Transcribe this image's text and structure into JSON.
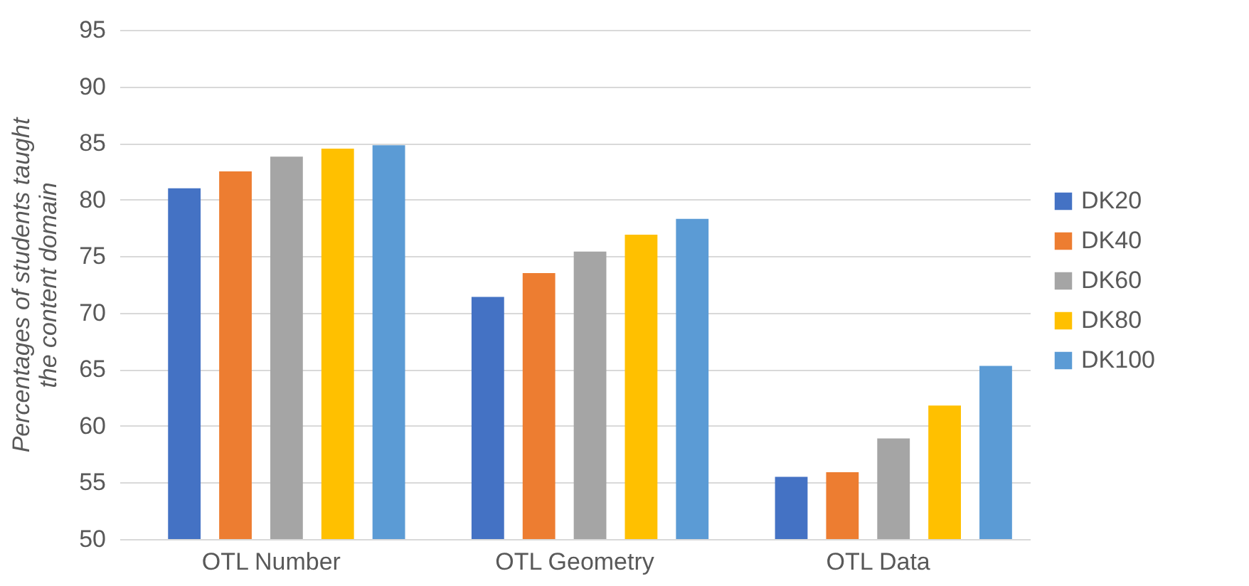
{
  "chart_data": {
    "type": "bar",
    "ylabel": "Percentages of students taught the content domain",
    "categories": [
      "OTL Number",
      "OTL Geometry",
      "OTL Data"
    ],
    "series": [
      {
        "name": "DK20",
        "color": "#4472c4",
        "values": [
          81.0,
          71.4,
          55.5
        ]
      },
      {
        "name": "DK40",
        "color": "#ed7d31",
        "values": [
          82.5,
          73.5,
          55.9
        ]
      },
      {
        "name": "DK60",
        "color": "#a5a5a5",
        "values": [
          83.8,
          75.4,
          58.9
        ]
      },
      {
        "name": "DK80",
        "color": "#ffc000",
        "values": [
          84.5,
          76.9,
          61.8
        ]
      },
      {
        "name": "DK100",
        "color": "#5b9bd5",
        "values": [
          84.8,
          78.3,
          65.3
        ]
      }
    ],
    "ylim": [
      50,
      95
    ],
    "yticks": [
      50,
      55,
      60,
      65,
      70,
      75,
      80,
      85,
      90,
      95
    ],
    "grid": "y",
    "legend": "right"
  }
}
